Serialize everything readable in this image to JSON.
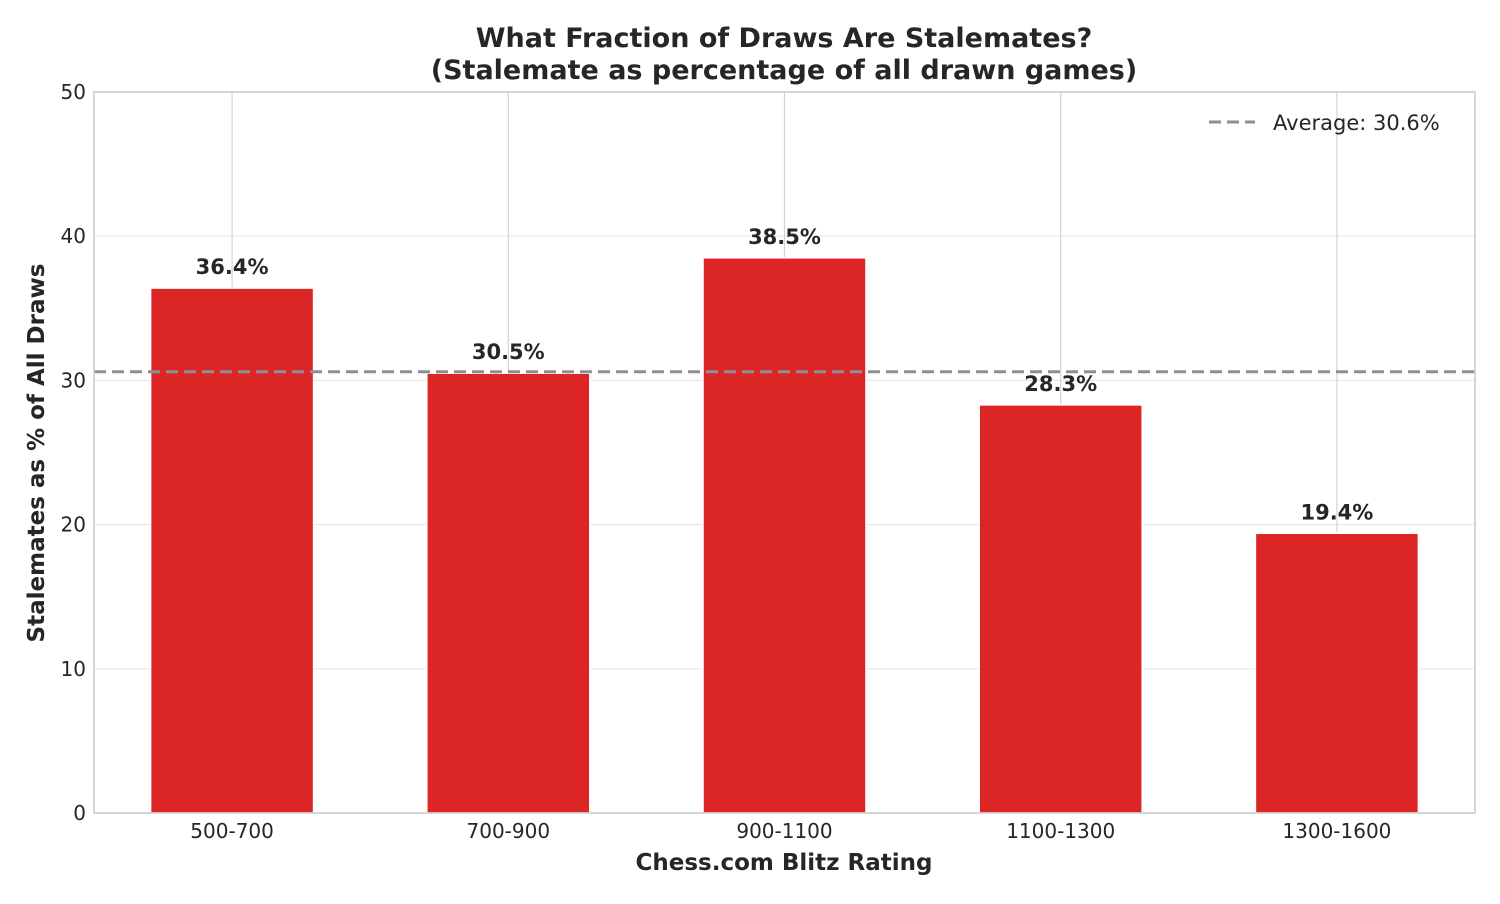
{
  "chart_data": {
    "type": "bar",
    "title": "What Fraction of Draws Are Stalemates?",
    "subtitle": "(Stalemate as percentage of all drawn games)",
    "xlabel": "Chess.com Blitz Rating",
    "ylabel": "Stalemates as % of All Draws",
    "categories": [
      "500-700",
      "700-900",
      "900-1100",
      "1100-1300",
      "1300-1600"
    ],
    "values": [
      36.4,
      30.5,
      38.5,
      28.3,
      19.4
    ],
    "data_labels": [
      "36.4%",
      "30.5%",
      "38.5%",
      "28.3%",
      "19.4%"
    ],
    "ylim": [
      0,
      50
    ],
    "yticks": [
      0,
      10,
      20,
      30,
      40,
      50
    ],
    "average": 30.6,
    "legend": [
      {
        "label": "Average: 30.6%",
        "style": "dashed-line"
      }
    ],
    "legend_position": "top-right",
    "grid": true,
    "colors": {
      "bar": "#dc2626",
      "average_line": "#8e8e96",
      "grid": "#e8e8e8",
      "frame": "#cccccc"
    }
  }
}
